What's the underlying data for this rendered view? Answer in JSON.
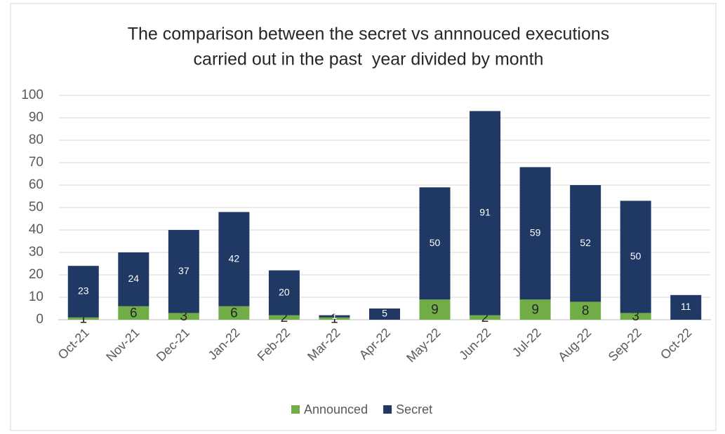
{
  "chart_data": {
    "type": "stacked_bar",
    "title": [
      "The comparison between the secret vs annnouced executions",
      "carried out in the past  year divided by month"
    ],
    "categories": [
      "Oct-21",
      "Nov-21",
      "Dec-21",
      "Jan-22",
      "Feb-22",
      "Mar-22",
      "Apr-22",
      "May-22",
      "Jun-22",
      "Jul-22",
      "Aug-22",
      "Sep-22",
      "Oct-22"
    ],
    "series": [
      {
        "name": "Announced",
        "color": "#70ad47",
        "label_color": "#262626",
        "values": [
          1,
          6,
          3,
          6,
          2,
          1,
          null,
          9,
          2,
          9,
          8,
          3,
          null
        ]
      },
      {
        "name": "Secret",
        "color": "#203864",
        "label_color": "#ffffff",
        "values": [
          23,
          24,
          37,
          42,
          20,
          1,
          5,
          50,
          91,
          59,
          52,
          50,
          11
        ]
      }
    ],
    "ylim": [
      0,
      100
    ],
    "yticks": [
      0,
      10,
      20,
      30,
      40,
      50,
      60,
      70,
      80,
      90,
      100
    ],
    "grid": true,
    "legend": "bottom"
  }
}
